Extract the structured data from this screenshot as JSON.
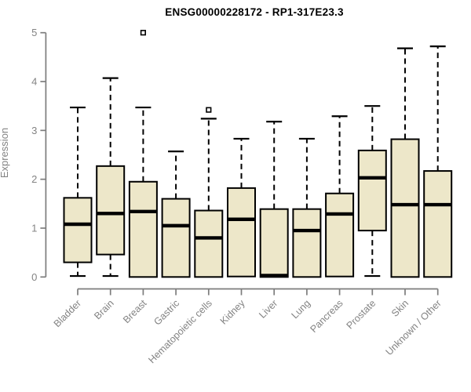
{
  "chart_data": {
    "type": "boxplot",
    "title": "ENSG00000228172 - RP1-317E23.3",
    "ylabel": "Expression",
    "xlabel": "",
    "ylim": [
      0,
      5
    ],
    "yticks": [
      0,
      1,
      2,
      3,
      4,
      5
    ],
    "grid": false,
    "legend": "none",
    "categories": [
      "Bladder",
      "Brain",
      "Breast",
      "Gastric",
      "Hematopoietic cells",
      "Kidney",
      "Liver",
      "Lung",
      "Pancreas",
      "Prostate",
      "Skin",
      "Unknown / Other"
    ],
    "series": [
      {
        "name": "Bladder",
        "whisker_low": 0.02,
        "q1": 0.3,
        "median": 1.08,
        "q3": 1.62,
        "whisker_high": 3.47,
        "outliers": []
      },
      {
        "name": "Brain",
        "whisker_low": 0.02,
        "q1": 0.46,
        "median": 1.3,
        "q3": 2.27,
        "whisker_high": 4.07,
        "outliers": []
      },
      {
        "name": "Breast",
        "whisker_low": 0.0,
        "q1": 0.0,
        "median": 1.34,
        "q3": 1.95,
        "whisker_high": 3.47,
        "outliers": [
          5.0
        ]
      },
      {
        "name": "Gastric",
        "whisker_low": 0.0,
        "q1": 0.0,
        "median": 1.05,
        "q3": 1.6,
        "whisker_high": 2.57,
        "outliers": []
      },
      {
        "name": "Hematopoietic cells",
        "whisker_low": 0.0,
        "q1": 0.0,
        "median": 0.8,
        "q3": 1.36,
        "whisker_high": 3.24,
        "outliers": [
          3.42
        ]
      },
      {
        "name": "Kidney",
        "whisker_low": 0.01,
        "q1": 0.01,
        "median": 1.18,
        "q3": 1.82,
        "whisker_high": 2.83,
        "outliers": []
      },
      {
        "name": "Liver",
        "whisker_low": 0.0,
        "q1": 0.0,
        "median": 0.03,
        "q3": 1.39,
        "whisker_high": 3.18,
        "outliers": []
      },
      {
        "name": "Lung",
        "whisker_low": 0.0,
        "q1": 0.0,
        "median": 0.95,
        "q3": 1.39,
        "whisker_high": 2.83,
        "outliers": []
      },
      {
        "name": "Pancreas",
        "whisker_low": 0.01,
        "q1": 0.01,
        "median": 1.29,
        "q3": 1.71,
        "whisker_high": 3.29,
        "outliers": []
      },
      {
        "name": "Prostate",
        "whisker_low": 0.02,
        "q1": 0.95,
        "median": 2.03,
        "q3": 2.59,
        "whisker_high": 3.5,
        "outliers": []
      },
      {
        "name": "Skin",
        "whisker_low": 0.0,
        "q1": 0.0,
        "median": 1.48,
        "q3": 2.82,
        "whisker_high": 4.68,
        "outliers": []
      },
      {
        "name": "Unknown / Other",
        "whisker_low": 0.0,
        "q1": 0.0,
        "median": 1.48,
        "q3": 2.17,
        "whisker_high": 4.72,
        "outliers": []
      }
    ],
    "colors": {
      "box_fill": "#EDE7C9",
      "box_stroke": "#000000",
      "median": "#000000",
      "axis": "#7d7d7d",
      "tick_label": "#838383",
      "title": "#000000"
    }
  }
}
